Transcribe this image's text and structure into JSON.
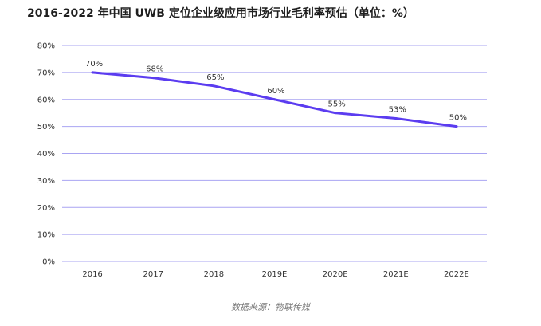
{
  "chart_data": {
    "type": "line",
    "title": "2016-2022 年中国 UWB 定位企业级应用市场行业毛利率预估（单位：%）",
    "source": "数据来源：物联传媒",
    "categories": [
      "2016",
      "2017",
      "2018",
      "2019E",
      "2020E",
      "2021E",
      "2022E"
    ],
    "series": [
      {
        "values": [
          70,
          68,
          65,
          60,
          55,
          53,
          50
        ],
        "color": "#5b3cf0"
      }
    ],
    "data_labels": [
      "70%",
      "68%",
      "65%",
      "60%",
      "55%",
      "53%",
      "50%"
    ],
    "y_ticks": [
      0,
      10,
      20,
      30,
      40,
      50,
      60,
      70,
      80
    ],
    "y_tick_labels": [
      "0%",
      "10%",
      "20%",
      "30%",
      "40%",
      "50%",
      "60%",
      "70%",
      "80%"
    ],
    "ylim": [
      0,
      80
    ],
    "grid": true,
    "grid_color": "#a9a4f2",
    "legend": "none"
  }
}
